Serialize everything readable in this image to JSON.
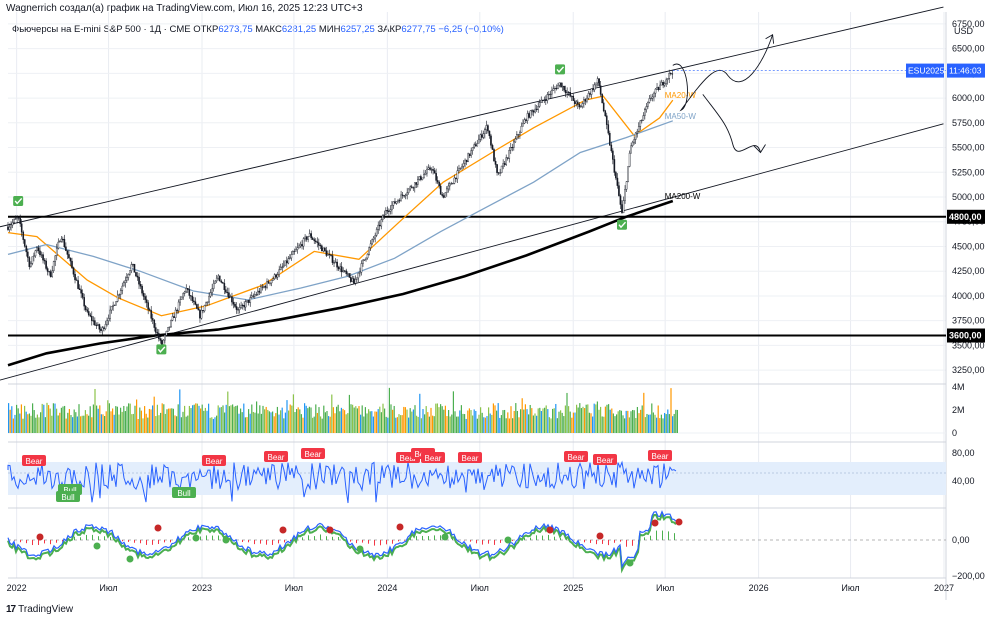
{
  "header": {
    "author_line": "Wagnerrich создал(а) график на TradingView.com, Июл 16, 2025 12:23 UTC+3"
  },
  "legend": {
    "symbol": "Фьючерсы на E-mini S&P 500 · 1Д · CME",
    "open_label": "ОТКР",
    "open": "6273,75",
    "high_label": "МАКС",
    "high": "6281,25",
    "low_label": "МИН",
    "low": "6257,25",
    "close_label": "ЗАКР",
    "close": "6277,75",
    "change": "−6,25 (−0,10%)"
  },
  "footer": {
    "brand": "TradingView"
  },
  "chart_data": {
    "type": "line",
    "currency": "USD",
    "x_ticks": [
      "2022",
      "Июл",
      "2023",
      "Июл",
      "2024",
      "Июл",
      "2025",
      "Июл",
      "2026",
      "Июл",
      "2027"
    ],
    "y_ticks": [
      "6750,00",
      "6500,00",
      "6250,00",
      "6000,00",
      "5750,00",
      "5500,00",
      "5250,00",
      "5000,00",
      "4750,00",
      "4500,00",
      "4250,00",
      "4000,00",
      "3750,00",
      "3500,00",
      "3250,00"
    ],
    "y_range": [
      3120,
      6870
    ],
    "price_badge": {
      "symbol": "ESU2025",
      "time": "11:46:03",
      "value": 6277.75
    },
    "levels": [
      {
        "value": 4800,
        "label": "4800,00"
      },
      {
        "value": 3600,
        "label": "3600,00"
      }
    ],
    "price_series": {
      "name": "ES",
      "points": [
        [
          "2021-12-15",
          4700
        ],
        [
          "2022-01-04",
          4790
        ],
        [
          "2022-01-27",
          4300
        ],
        [
          "2022-02-10",
          4500
        ],
        [
          "2022-03-08",
          4200
        ],
        [
          "2022-03-29",
          4620
        ],
        [
          "2022-05-20",
          3820
        ],
        [
          "2022-06-17",
          3640
        ],
        [
          "2022-08-16",
          4320
        ],
        [
          "2022-10-13",
          3500
        ],
        [
          "2022-11-30",
          4080
        ],
        [
          "2022-12-28",
          3800
        ],
        [
          "2023-02-02",
          4200
        ],
        [
          "2023-03-13",
          3850
        ],
        [
          "2023-05-25",
          4200
        ],
        [
          "2023-07-31",
          4620
        ],
        [
          "2023-10-27",
          4130
        ],
        [
          "2023-12-28",
          4850
        ],
        [
          "2024-03-28",
          5300
        ],
        [
          "2024-04-19",
          5000
        ],
        [
          "2024-07-16",
          5720
        ],
        [
          "2024-08-05",
          5200
        ],
        [
          "2024-09-30",
          5800
        ],
        [
          "2024-12-06",
          6150
        ],
        [
          "2025-01-13",
          5900
        ],
        [
          "2025-02-19",
          6180
        ],
        [
          "2025-03-13",
          5570
        ],
        [
          "2025-04-07",
          4830
        ],
        [
          "2025-04-24",
          5500
        ],
        [
          "2025-06-02",
          6000
        ],
        [
          "2025-07-16",
          6278
        ]
      ]
    },
    "moving_averages": [
      {
        "name": "MA20-W",
        "color": "#ff9800",
        "points": [
          [
            "2021-12-15",
            4640
          ],
          [
            "2022-02-10",
            4600
          ],
          [
            "2022-05-20",
            4160
          ],
          [
            "2022-07-20",
            3980
          ],
          [
            "2022-10-13",
            3800
          ],
          [
            "2023-01-10",
            3900
          ],
          [
            "2023-05-01",
            4110
          ],
          [
            "2023-08-10",
            4450
          ],
          [
            "2023-11-06",
            4370
          ],
          [
            "2024-01-25",
            4750
          ],
          [
            "2024-04-20",
            5150
          ],
          [
            "2024-07-25",
            5450
          ],
          [
            "2024-10-15",
            5700
          ],
          [
            "2025-01-25",
            5980
          ],
          [
            "2025-03-01",
            6020
          ],
          [
            "2025-05-01",
            5620
          ],
          [
            "2025-06-20",
            5800
          ],
          [
            "2025-07-16",
            5980
          ]
        ]
      },
      {
        "name": "MA50-W",
        "color": "#7fa3c7",
        "points": [
          [
            "2021-12-15",
            4420
          ],
          [
            "2022-03-01",
            4520
          ],
          [
            "2022-06-01",
            4400
          ],
          [
            "2022-09-01",
            4250
          ],
          [
            "2022-12-15",
            4050
          ],
          [
            "2023-04-01",
            3960
          ],
          [
            "2023-07-15",
            4080
          ],
          [
            "2023-10-15",
            4200
          ],
          [
            "2024-01-15",
            4380
          ],
          [
            "2024-04-15",
            4650
          ],
          [
            "2024-07-15",
            4900
          ],
          [
            "2024-10-15",
            5150
          ],
          [
            "2025-01-15",
            5450
          ],
          [
            "2025-04-15",
            5600
          ],
          [
            "2025-07-16",
            5770
          ]
        ]
      },
      {
        "name": "MA200-W",
        "color": "#000000",
        "points": [
          [
            "2021-12-15",
            3300
          ],
          [
            "2022-03-01",
            3420
          ],
          [
            "2022-06-15",
            3520
          ],
          [
            "2022-10-01",
            3600
          ],
          [
            "2023-02-01",
            3660
          ],
          [
            "2023-06-01",
            3760
          ],
          [
            "2023-10-01",
            3880
          ],
          [
            "2024-02-01",
            4020
          ],
          [
            "2024-06-01",
            4200
          ],
          [
            "2024-10-01",
            4410
          ],
          [
            "2025-02-01",
            4650
          ],
          [
            "2025-04-15",
            4800
          ],
          [
            "2025-07-16",
            4960
          ]
        ]
      }
    ],
    "channel": {
      "upper": [
        [
          "2021-12-15",
          4780
        ],
        [
          "2026-12-31",
          6920
        ]
      ],
      "lower": [
        [
          "2021-12-15",
          3230
        ],
        [
          "2026-12-31",
          5740
        ]
      ]
    },
    "checkmarks": [
      [
        "2022-01-04",
        4960
      ],
      [
        "2022-10-13",
        3460
      ],
      [
        "2024-12-06",
        6290
      ],
      [
        "2025-04-07",
        4720
      ]
    ],
    "projection_arrows": [
      {
        "from": [
          "2025-07-16",
          6280
        ],
        "to": [
          "2026-01-01",
          6600
        ]
      },
      {
        "from": [
          "2025-07-20",
          6280
        ],
        "to": [
          "2025-12-20",
          5450
        ]
      }
    ],
    "volume": {
      "ticks": [
        "4M",
        "2M",
        "0"
      ],
      "max": 4000000
    },
    "oscillator": {
      "ticks": [
        "80,00",
        "40,00"
      ],
      "labels": [
        "Bear",
        "Bull",
        "Bull",
        "Bull",
        "Bear",
        "Bear",
        "Bear",
        "Bear",
        "Bear",
        "Bear",
        "Bear",
        "Bear",
        "Bear",
        "Bear"
      ]
    },
    "momentum": {
      "ticks": [
        "0,00",
        "−200,00"
      ]
    }
  }
}
